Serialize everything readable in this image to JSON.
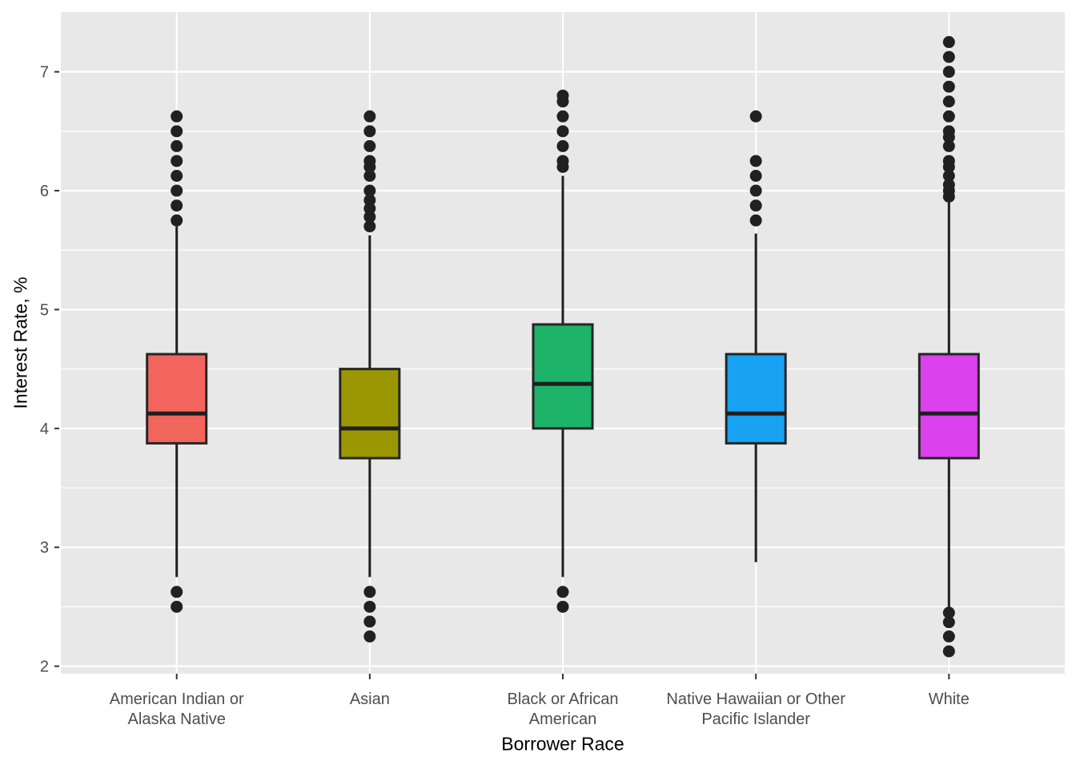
{
  "figure": {
    "background": "#FFFFFF"
  },
  "panel": {
    "background": "#E8E8E8",
    "gridline_color": "#FFFFFF",
    "tick_mark_color": "#333333",
    "tick_label_color": "#4D4D4D",
    "axis_title_color": "#000000"
  },
  "chart_data": {
    "type": "boxplot",
    "title": "",
    "xlabel": "Borrower Race",
    "ylabel": "Interest Rate, %",
    "ylim": [
      1.94,
      7.5
    ],
    "y_ticks": [
      2,
      3,
      4,
      5,
      6,
      7
    ],
    "y_minor_ticks": [
      2.5,
      3.5,
      4.5,
      5.5,
      6.5
    ],
    "grid": "on",
    "legend": "none",
    "box_outline_color": "#262626",
    "whisker_color": "#1F1F1F",
    "median_color": "#1F1F1F",
    "outlier_color": "#212121",
    "categories": [
      {
        "label": "American Indian or Alaska Native",
        "label_lines": [
          "American Indian or",
          "Alaska Native"
        ],
        "color": "#F2655C",
        "q1": 3.875,
        "median": 4.125,
        "q3": 4.625,
        "whisker_low": 2.75,
        "whisker_high": 5.7,
        "outliers_low": [
          2.625,
          2.5
        ],
        "outliers_high": [
          5.75,
          5.875,
          6.0,
          6.125,
          6.25,
          6.375,
          6.5,
          6.625
        ]
      },
      {
        "label": "Asian",
        "label_lines": [
          "Asian"
        ],
        "color": "#9A9702",
        "q1": 3.75,
        "median": 4.0,
        "q3": 4.5,
        "whisker_low": 2.75,
        "whisker_high": 5.625,
        "outliers_low": [
          2.625,
          2.5,
          2.375,
          2.25
        ],
        "outliers_high": [
          5.7,
          5.78,
          5.85,
          5.92,
          6.0,
          6.125,
          6.2,
          6.25,
          6.375,
          6.5,
          6.625
        ]
      },
      {
        "label": "Black or African American",
        "label_lines": [
          "Black or African",
          "American"
        ],
        "color": "#1DB369",
        "q1": 4.0,
        "median": 4.375,
        "q3": 4.875,
        "whisker_low": 2.75,
        "whisker_high": 6.125,
        "outliers_low": [
          2.625,
          2.5
        ],
        "outliers_high": [
          6.2,
          6.25,
          6.375,
          6.5,
          6.625,
          6.75,
          6.8
        ]
      },
      {
        "label": "Native Hawaiian or Other Pacific Islander",
        "label_lines": [
          "Native Hawaiian or Other",
          "Pacific Islander"
        ],
        "color": "#18A2F2",
        "q1": 3.875,
        "median": 4.125,
        "q3": 4.625,
        "whisker_low": 2.875,
        "whisker_high": 5.64,
        "outliers_low": [],
        "outliers_high": [
          5.75,
          5.875,
          6.0,
          6.125,
          6.25,
          6.625
        ]
      },
      {
        "label": "White",
        "label_lines": [
          "White"
        ],
        "color": "#DC41EE",
        "q1": 3.75,
        "median": 4.125,
        "q3": 4.625,
        "whisker_low": 2.5,
        "whisker_high": 5.9,
        "outliers_low": [
          2.45,
          2.37,
          2.25,
          2.125
        ],
        "outliers_high": [
          5.95,
          6.0,
          6.05,
          6.125,
          6.2,
          6.25,
          6.375,
          6.45,
          6.5,
          6.625,
          6.75,
          6.875,
          7.0,
          7.125,
          7.25
        ]
      }
    ]
  }
}
